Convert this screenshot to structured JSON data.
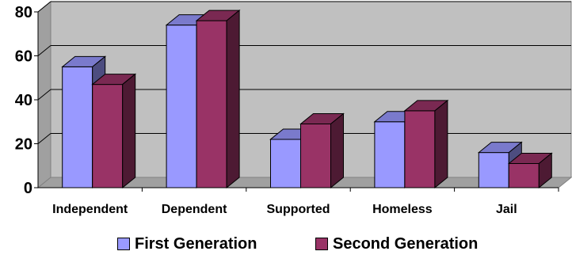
{
  "chart_data": {
    "type": "bar",
    "style": "3d-clustered-column",
    "categories": [
      "Independent",
      "Dependent",
      "Supported",
      "Homeless",
      "Jail"
    ],
    "series": [
      {
        "name": "First Generation",
        "values": [
          55,
          74,
          22,
          30,
          16
        ],
        "color": "#9999ff"
      },
      {
        "name": "Second Generation",
        "values": [
          47,
          76,
          29,
          35,
          11
        ],
        "color": "#993366"
      }
    ],
    "ylim": [
      0,
      80
    ],
    "yticks": [
      "0",
      "20",
      "40",
      "60",
      "80"
    ],
    "grid": true,
    "legend_position": "bottom",
    "wall_color": "#c0c0c0",
    "title": "",
    "xlabel": "",
    "ylabel": ""
  }
}
